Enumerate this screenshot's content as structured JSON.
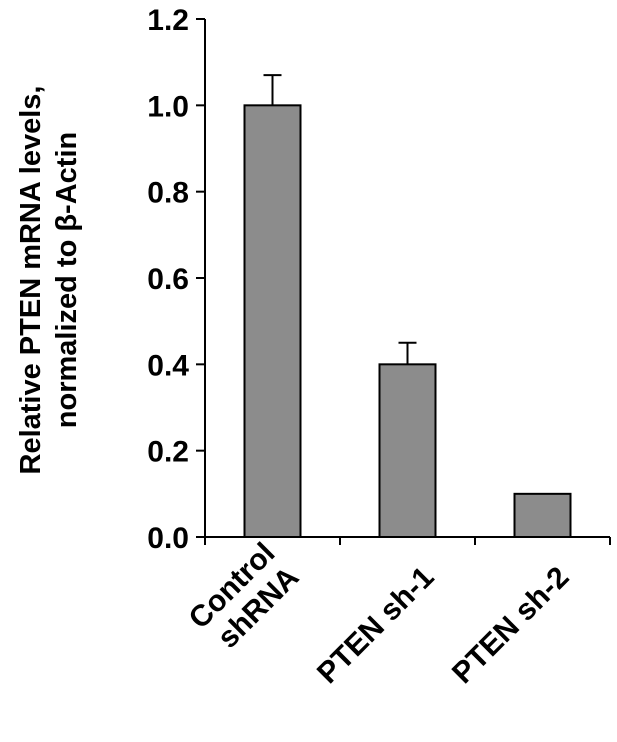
{
  "chart_data": {
    "type": "bar",
    "categories": [
      [
        "Control",
        "shRNA"
      ],
      [
        "PTEN sh-1"
      ],
      [
        "PTEN sh-2"
      ]
    ],
    "values": [
      1.0,
      0.4,
      0.1
    ],
    "error_plus": [
      0.07,
      0.05,
      0.0
    ],
    "title": "",
    "xlabel": "",
    "ylabel": [
      "Relative PTEN mRNA levels,",
      "normalized to β-Actin"
    ],
    "ylim": [
      0,
      1.2
    ],
    "yticks": [
      "0.0",
      "0.2",
      "0.4",
      "0.6",
      "0.8",
      "1.0",
      "1.2"
    ],
    "grid": false,
    "legend": "none",
    "bar_color": "#8c8c8c",
    "edge_color": "#000000"
  }
}
